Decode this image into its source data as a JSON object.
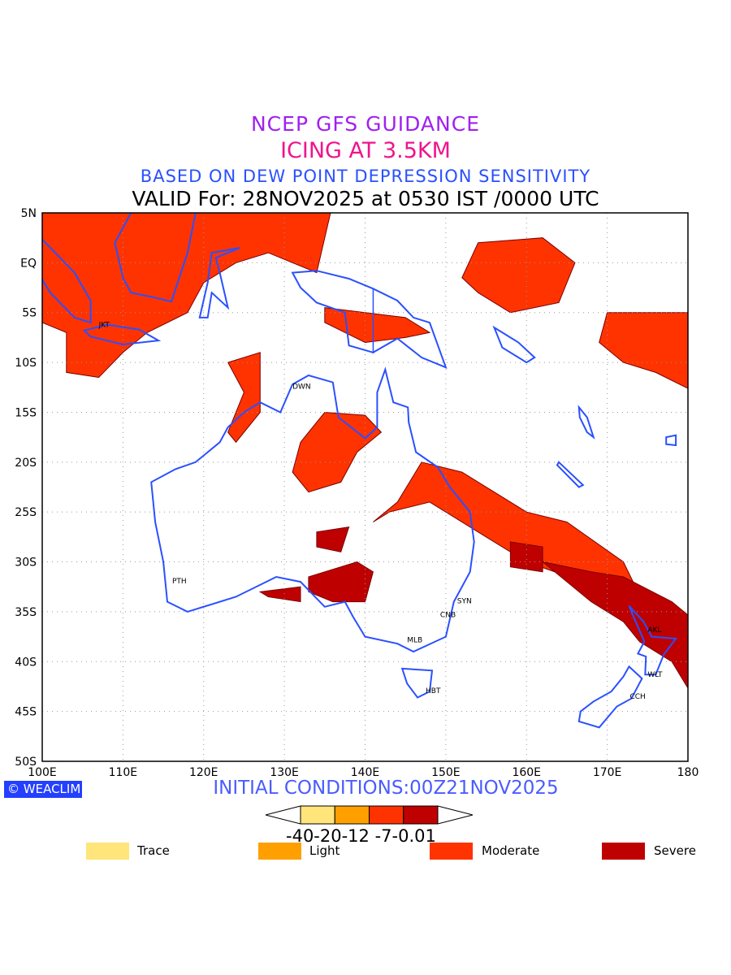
{
  "title": {
    "line1": "NCEP GFS GUIDANCE",
    "line2": "ICING AT 3.5KM",
    "line3": "BASED ON DEW POINT DEPRESSION SENSITIVITY",
    "line4": "VALID For: 28NOV2025 at 0530 IST /0000 UTC"
  },
  "axes": {
    "lon_labels": [
      "100E",
      "110E",
      "120E",
      "130E",
      "140E",
      "150E",
      "160E",
      "170E",
      "180"
    ],
    "lat_labels": [
      "5N",
      "EQ",
      "5S",
      "10S",
      "15S",
      "20S",
      "25S",
      "30S",
      "35S",
      "40S",
      "45S",
      "50S"
    ],
    "lon_range": [
      100,
      180
    ],
    "lat_range": [
      -50,
      5
    ]
  },
  "cities": [
    {
      "label": "JKT",
      "lon": 106.8,
      "lat": -6.2
    },
    {
      "label": "DWN",
      "lon": 130.8,
      "lat": -12.4
    },
    {
      "label": "PTH",
      "lon": 115.9,
      "lat": -31.9
    },
    {
      "label": "SYN",
      "lon": 151.2,
      "lat": -33.9
    },
    {
      "label": "CNB",
      "lon": 149.1,
      "lat": -35.3
    },
    {
      "label": "MLB",
      "lon": 145.0,
      "lat": -37.8
    },
    {
      "label": "HBT",
      "lon": 147.3,
      "lat": -42.9
    },
    {
      "label": "AKL",
      "lon": 174.8,
      "lat": -36.8
    },
    {
      "label": "WLT",
      "lon": 174.8,
      "lat": -41.3
    },
    {
      "label": "CCH",
      "lon": 172.6,
      "lat": -43.5
    }
  ],
  "logo": "WEACLIM",
  "initial_conditions": "INITIAL CONDITIONS:00Z21NOV2025",
  "colorbar": {
    "labels": "-40-20-12 -7-0.01",
    "colors": [
      "#ffe57a",
      "#ffa000",
      "#ff3300",
      "#bf0000"
    ]
  },
  "legend": [
    {
      "label": "Trace",
      "color": "#ffe57a"
    },
    {
      "label": "Light",
      "color": "#ffa000"
    },
    {
      "label": "Moderate",
      "color": "#ff3300"
    },
    {
      "label": "Severe",
      "color": "#bf0000"
    }
  ],
  "colors": {
    "coast": "#2a50ff",
    "grid": "#999999"
  }
}
